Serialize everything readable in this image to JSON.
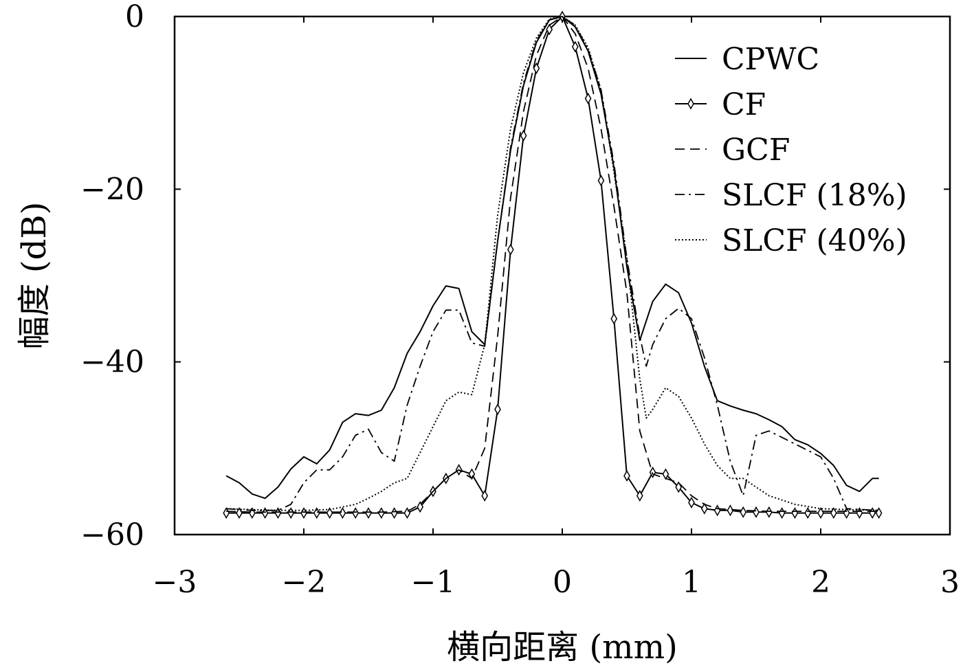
{
  "chart_data": {
    "type": "line",
    "title": "",
    "xlabel": "横向距离 (mm)",
    "ylabel": "幅度 (dB)",
    "xlim": [
      -3,
      3
    ],
    "ylim": [
      -60,
      0
    ],
    "xticks": [
      -3,
      -2,
      -1,
      0,
      1,
      2,
      3
    ],
    "xtick_labels": [
      "−3",
      "−2",
      "−1",
      "0",
      "1",
      "2",
      "3"
    ],
    "yticks": [
      0,
      -20,
      -40,
      -60
    ],
    "ytick_labels": [
      "0",
      "−20",
      "−40",
      "−60"
    ],
    "grid": false,
    "legend_position": "top-right",
    "series": [
      {
        "name": "CPWC",
        "style": "solid",
        "x": [
          -2.6,
          -2.5,
          -2.4,
          -2.3,
          -2.2,
          -2.1,
          -2.0,
          -1.9,
          -1.8,
          -1.7,
          -1.6,
          -1.5,
          -1.4,
          -1.3,
          -1.2,
          -1.1,
          -1.0,
          -0.9,
          -0.8,
          -0.7,
          -0.6,
          -0.5,
          -0.4,
          -0.3,
          -0.2,
          -0.1,
          0.0,
          0.1,
          0.2,
          0.3,
          0.4,
          0.5,
          0.6,
          0.7,
          0.8,
          0.9,
          1.0,
          1.1,
          1.2,
          1.3,
          1.4,
          1.5,
          1.6,
          1.7,
          1.8,
          1.9,
          2.0,
          2.1,
          2.2,
          2.3,
          2.4,
          2.45
        ],
        "values": [
          -53.2,
          -54,
          -55.3,
          -55.8,
          -54.5,
          -52.4,
          -51,
          -51.8,
          -50.2,
          -47,
          -46,
          -46.2,
          -45.6,
          -43,
          -39,
          -36.5,
          -33.5,
          -31.2,
          -31.5,
          -36.5,
          -38,
          -26,
          -15.5,
          -8,
          -3,
          -0.4,
          0,
          -1.2,
          -4,
          -9,
          -17.5,
          -29,
          -37.5,
          -33,
          -31,
          -32,
          -35.5,
          -40.5,
          -44.5,
          -45.1,
          -45.6,
          -46,
          -46.7,
          -47.5,
          -49,
          -49.6,
          -50.6,
          -52,
          -54.3,
          -55,
          -53.5,
          -53.5
        ]
      },
      {
        "name": "CF",
        "style": "solid-diamond",
        "x": [
          -2.6,
          -2.5,
          -2.4,
          -2.3,
          -2.2,
          -2.1,
          -2.0,
          -1.9,
          -1.8,
          -1.7,
          -1.6,
          -1.5,
          -1.4,
          -1.3,
          -1.2,
          -1.1,
          -1.0,
          -0.9,
          -0.8,
          -0.7,
          -0.6,
          -0.5,
          -0.4,
          -0.3,
          -0.2,
          -0.1,
          0.0,
          0.1,
          0.2,
          0.3,
          0.4,
          0.5,
          0.6,
          0.7,
          0.8,
          0.9,
          1.0,
          1.1,
          1.2,
          1.3,
          1.4,
          1.5,
          1.6,
          1.7,
          1.8,
          1.9,
          2.0,
          2.1,
          2.2,
          2.3,
          2.4,
          2.45
        ],
        "values": [
          -57.5,
          -57.5,
          -57.5,
          -57.5,
          -57.5,
          -57.5,
          -57.5,
          -57.5,
          -57.5,
          -57.5,
          -57.5,
          -57.5,
          -57.5,
          -57.5,
          -57.5,
          -56.8,
          -55,
          -53.5,
          -52.5,
          -53,
          -55.5,
          -45.5,
          -27,
          -13.8,
          -6,
          -1.5,
          0,
          -3.5,
          -9.5,
          -19,
          -35,
          -53.2,
          -55.5,
          -52.8,
          -53,
          -54.5,
          -56.3,
          -57,
          -57.2,
          -57.2,
          -57.4,
          -57.4,
          -57.4,
          -57.5,
          -57.5,
          -57.5,
          -57.5,
          -57.5,
          -57.5,
          -57.5,
          -57.5,
          -57.5
        ]
      },
      {
        "name": "GCF",
        "style": "dashed",
        "x": [
          -2.6,
          -2.4,
          -2.2,
          -2.0,
          -1.8,
          -1.6,
          -1.4,
          -1.2,
          -1.1,
          -1.0,
          -0.9,
          -0.8,
          -0.7,
          -0.6,
          -0.5,
          -0.4,
          -0.3,
          -0.2,
          -0.1,
          0.0,
          0.1,
          0.2,
          0.3,
          0.4,
          0.5,
          0.6,
          0.7,
          0.8,
          0.9,
          1.0,
          1.1,
          1.2,
          1.4,
          1.6,
          1.8,
          2.0,
          2.2,
          2.45
        ],
        "values": [
          -57.3,
          -57.4,
          -57.4,
          -57.4,
          -57.4,
          -57.4,
          -57.4,
          -57.3,
          -56.5,
          -55,
          -53.5,
          -52.5,
          -53.5,
          -50,
          -37,
          -21,
          -11,
          -4.5,
          -1,
          0,
          -2,
          -6,
          -13,
          -22,
          -32,
          -48,
          -53,
          -53.5,
          -54,
          -55.5,
          -56.5,
          -57,
          -57.2,
          -57.3,
          -57.3,
          -57.3,
          -57.3,
          -57.3
        ]
      },
      {
        "name": "SLCF (18%)",
        "style": "dash-dot",
        "x": [
          -2.6,
          -2.4,
          -2.2,
          -2.1,
          -2.0,
          -1.9,
          -1.8,
          -1.7,
          -1.6,
          -1.5,
          -1.4,
          -1.3,
          -1.2,
          -1.1,
          -1.0,
          -0.9,
          -0.8,
          -0.7,
          -0.6,
          -0.5,
          -0.4,
          -0.3,
          -0.2,
          -0.1,
          0.0,
          0.1,
          0.2,
          0.3,
          0.4,
          0.5,
          0.6,
          0.65,
          0.7,
          0.8,
          0.9,
          1.0,
          1.1,
          1.2,
          1.3,
          1.4,
          1.5,
          1.6,
          1.8,
          2.0,
          2.1,
          2.2,
          2.45
        ],
        "values": [
          -57,
          -57.2,
          -57.2,
          -56.5,
          -54,
          -52.5,
          -52.5,
          -51,
          -48.5,
          -47.8,
          -50.5,
          -51.5,
          -45,
          -40.5,
          -36.5,
          -34,
          -34,
          -37.8,
          -38.2,
          -26,
          -15.2,
          -7.7,
          -2.8,
          -0.4,
          0,
          -1,
          -3.8,
          -8.5,
          -17,
          -28,
          -37,
          -40.5,
          -38,
          -35,
          -33.8,
          -35,
          -39.5,
          -45,
          -51.5,
          -55.5,
          -48.5,
          -48,
          -49.5,
          -51,
          -53.5,
          -57,
          -57.2
        ]
      },
      {
        "name": "SLCF (40%)",
        "style": "dotted",
        "x": [
          -2.6,
          -2.4,
          -2.2,
          -2.0,
          -1.8,
          -1.6,
          -1.5,
          -1.4,
          -1.3,
          -1.2,
          -1.1,
          -1.0,
          -0.9,
          -0.8,
          -0.7,
          -0.6,
          -0.5,
          -0.4,
          -0.3,
          -0.2,
          -0.1,
          0.0,
          0.1,
          0.2,
          0.3,
          0.4,
          0.5,
          0.6,
          0.65,
          0.7,
          0.8,
          0.9,
          1.0,
          1.1,
          1.2,
          1.3,
          1.4,
          1.5,
          1.6,
          1.8,
          2.0,
          2.2,
          2.45
        ],
        "values": [
          -57,
          -57.1,
          -57.2,
          -57.2,
          -57.1,
          -56.5,
          -55.8,
          -55,
          -54,
          -53.5,
          -50.5,
          -47.5,
          -44.5,
          -43.5,
          -43.8,
          -38,
          -23,
          -13,
          -6.5,
          -2.5,
          -0.3,
          0,
          -1,
          -3.6,
          -8.5,
          -18,
          -28,
          -42,
          -46.5,
          -45.5,
          -43,
          -44,
          -46.5,
          -49.5,
          -52,
          -53.5,
          -53.5,
          -54.5,
          -55.5,
          -56.5,
          -57,
          -57.1,
          -57.2
        ]
      }
    ]
  }
}
